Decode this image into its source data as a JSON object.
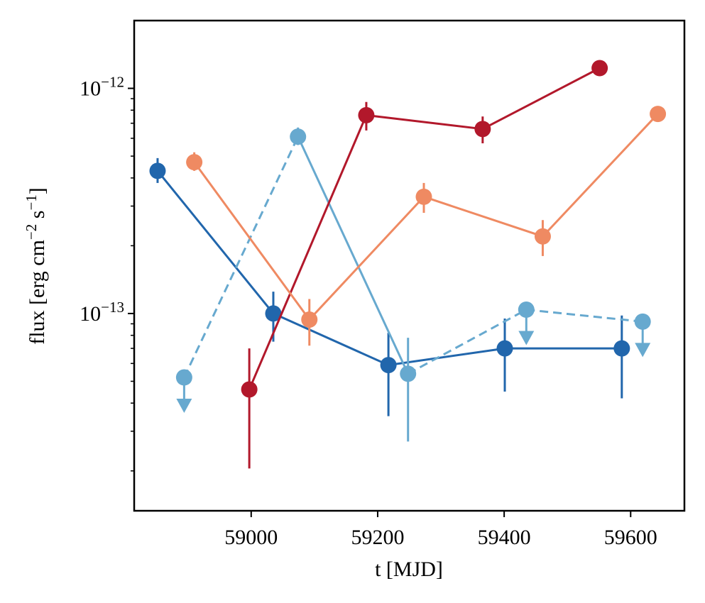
{
  "chart_data": {
    "type": "scatter",
    "title": "",
    "xlabel": "t [MJD]",
    "ylabel": "flux [erg cm⁻² s⁻¹]",
    "ylabel_parts": {
      "pre": "flux [erg cm",
      "exp1": "−2",
      "mid": " s",
      "exp2": "−1",
      "post": "]"
    },
    "yscale": "log",
    "xlim": [
      58815,
      59685
    ],
    "ylim": [
      1.33e-14,
      2e-12
    ],
    "xticks": [
      {
        "value": 59000,
        "label": "59000"
      },
      {
        "value": 59200,
        "label": "59200"
      },
      {
        "value": 59400,
        "label": "59400"
      },
      {
        "value": 59600,
        "label": "59600"
      }
    ],
    "yticks": [
      {
        "value": 1e-13,
        "base": "10",
        "exp": "−13"
      },
      {
        "value": 1e-12,
        "base": "10",
        "exp": "−12"
      }
    ],
    "series": [
      {
        "name": "dark-blue",
        "color": "#2166ac",
        "linestyle": "solid",
        "points": [
          {
            "x": 58852,
            "y": 4.3e-13,
            "lo": 3.8e-13,
            "hi": 4.9e-13
          },
          {
            "x": 59035,
            "y": 1e-13,
            "lo": 7.5e-14,
            "hi": 1.25e-13
          },
          {
            "x": 59217,
            "y": 5.9e-14,
            "lo": 3.5e-14,
            "hi": 8.2e-14
          },
          {
            "x": 59401,
            "y": 7e-14,
            "lo": 4.5e-14,
            "hi": 9.5e-14
          },
          {
            "x": 59586,
            "y": 7e-14,
            "lo": 4.2e-14,
            "hi": 9.8e-14
          }
        ]
      },
      {
        "name": "light-blue",
        "color": "#67a9cf",
        "linestyle": "mixed",
        "points": [
          {
            "x": 58894,
            "y": 5.2e-14,
            "upper_limit": true
          },
          {
            "x": 59074,
            "y": 6.1e-13,
            "lo": 5.6e-13,
            "hi": 6.7e-13
          },
          {
            "x": 59248,
            "y": 5.4e-14,
            "lo": 2.7e-14,
            "hi": 7.8e-14
          },
          {
            "x": 59435,
            "y": 1.04e-13,
            "upper_limit": true
          },
          {
            "x": 59619,
            "y": 9.2e-14,
            "upper_limit": true
          }
        ],
        "segments": [
          {
            "from": 0,
            "to": 1,
            "style": "dashed"
          },
          {
            "from": 1,
            "to": 2,
            "style": "solid"
          },
          {
            "from": 2,
            "to": 3,
            "style": "dashed"
          },
          {
            "from": 3,
            "to": 4,
            "style": "dashed"
          }
        ]
      },
      {
        "name": "dark-red",
        "color": "#b2182b",
        "linestyle": "solid",
        "points": [
          {
            "x": 58997,
            "y": 4.6e-14,
            "lo": 2.05e-14,
            "hi": 7e-14
          },
          {
            "x": 59182,
            "y": 7.6e-13,
            "lo": 6.5e-13,
            "hi": 8.7e-13
          },
          {
            "x": 59366,
            "y": 6.6e-13,
            "lo": 5.7e-13,
            "hi": 7.5e-13
          },
          {
            "x": 59551,
            "y": 1.23e-12
          }
        ]
      },
      {
        "name": "salmon",
        "color": "#ef8a62",
        "linestyle": "solid",
        "points": [
          {
            "x": 58910,
            "y": 4.7e-13,
            "lo": 4.3e-13,
            "hi": 5.2e-13
          },
          {
            "x": 59092,
            "y": 9.4e-14,
            "lo": 7.2e-14,
            "hi": 1.16e-13
          },
          {
            "x": 59273,
            "y": 3.3e-13,
            "lo": 2.8e-13,
            "hi": 3.8e-13
          },
          {
            "x": 59461,
            "y": 2.2e-13,
            "lo": 1.8e-13,
            "hi": 2.6e-13
          },
          {
            "x": 59643,
            "y": 7.7e-13,
            "lo": 7.2e-13,
            "hi": 8.3e-13
          }
        ]
      }
    ]
  }
}
